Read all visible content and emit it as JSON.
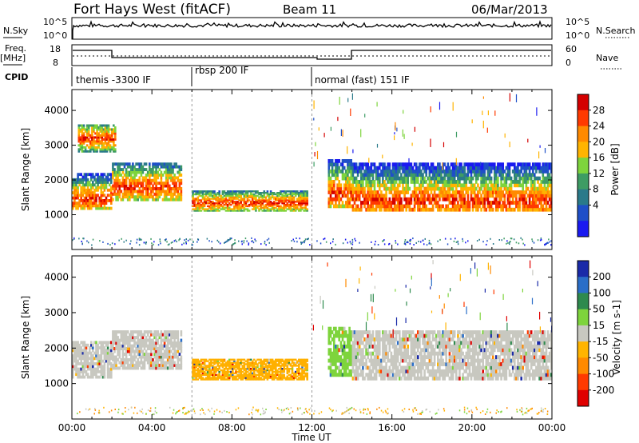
{
  "header": {
    "title": "Fort Hays West (fitACF)",
    "beam": "Beam 11",
    "date": "06/Mar/2013"
  },
  "nsky_panel": {
    "left_label": "N.Sky",
    "left_ticks": [
      "10^5",
      "10^0"
    ],
    "right_label": "N.Search",
    "right_ticks": [
      "10^5",
      "10^0"
    ]
  },
  "freq_panel": {
    "left_label_1": "Freq.",
    "left_label_2": "[MHz]",
    "left_ticks": [
      "18",
      "8"
    ],
    "right_label": "Nave",
    "right_ticks": [
      "60",
      "0"
    ],
    "cpid_label": "CPID"
  },
  "cpid_segments": [
    {
      "label": "themis -3300 IF"
    },
    {
      "label": "rbsp 200 IF"
    },
    {
      "label": "normal (fast) 151 IF"
    }
  ],
  "chart_data": [
    {
      "type": "heatmap",
      "name": "power",
      "ylabel": "Slant Range [km]",
      "yticks": [
        1000,
        2000,
        3000,
        4000
      ],
      "ylim": [
        0,
        4600
      ],
      "xlim_hours": [
        0,
        24
      ],
      "colorbar": {
        "label": "Power [dB]",
        "ticks": [
          "28",
          "24",
          "20",
          "16",
          "12",
          "8",
          "4"
        ],
        "colors": [
          "#d40000",
          "#ff3a00",
          "#ff8a00",
          "#ffb400",
          "#7ed43c",
          "#3e9c64",
          "#2a7a8a",
          "#1f4fc8",
          "#1a1af0"
        ]
      },
      "bands": [
        {
          "t0": 0.0,
          "t1": 2.0,
          "r_lo": 1150,
          "r_hi": 2200,
          "core": 1450
        },
        {
          "t0": 2.0,
          "t1": 5.5,
          "r_lo": 1400,
          "r_hi": 2500,
          "core": 1800
        },
        {
          "t0": 0.3,
          "t1": 2.2,
          "r_lo": 2800,
          "r_hi": 3600,
          "core": 3200
        },
        {
          "t0": 6.0,
          "t1": 11.8,
          "r_lo": 1100,
          "r_hi": 1700,
          "core": 1350
        },
        {
          "t0": 12.8,
          "t1": 14.0,
          "r_lo": 1200,
          "r_hi": 2600,
          "core": 1600
        },
        {
          "t0": 14.0,
          "t1": 24.0,
          "r_lo": 1100,
          "r_hi": 2500,
          "core": 1400
        }
      ]
    },
    {
      "type": "heatmap",
      "name": "velocity",
      "ylabel": "Slant Range [km]",
      "yticks": [
        1000,
        2000,
        3000,
        4000
      ],
      "ylim": [
        0,
        4600
      ],
      "xlim_hours": [
        0,
        24
      ],
      "colorbar": {
        "label": "Velocity [m s-1]",
        "ticks": [
          "200",
          "100",
          "50",
          "15",
          "-15",
          "-50",
          "-100",
          "-200"
        ],
        "colors": [
          "#1a2aa8",
          "#2a6ec8",
          "#2e8a4e",
          "#7ed43c",
          "#c8c8c0",
          "#ffb400",
          "#ff8a00",
          "#ff3a00",
          "#e00000"
        ]
      },
      "bands": [
        {
          "t0": 0.0,
          "t1": 2.0,
          "r_lo": 1150,
          "r_hi": 2200,
          "color": "#c8c8c0"
        },
        {
          "t0": 2.0,
          "t1": 5.5,
          "r_lo": 1400,
          "r_hi": 2500,
          "color": "#c8c8c0"
        },
        {
          "t0": 6.0,
          "t1": 11.8,
          "r_lo": 1100,
          "r_hi": 1700,
          "color": "#ffb000"
        },
        {
          "t0": 12.8,
          "t1": 14.0,
          "r_lo": 1200,
          "r_hi": 2600,
          "color": "#7ed43c"
        },
        {
          "t0": 14.0,
          "t1": 24.0,
          "r_lo": 1100,
          "r_hi": 2500,
          "color": "#c8c8c0"
        }
      ]
    }
  ],
  "x_axis": {
    "label": "Time UT",
    "ticks": [
      "00:00",
      "04:00",
      "08:00",
      "12:00",
      "16:00",
      "20:00",
      "00:00"
    ]
  }
}
